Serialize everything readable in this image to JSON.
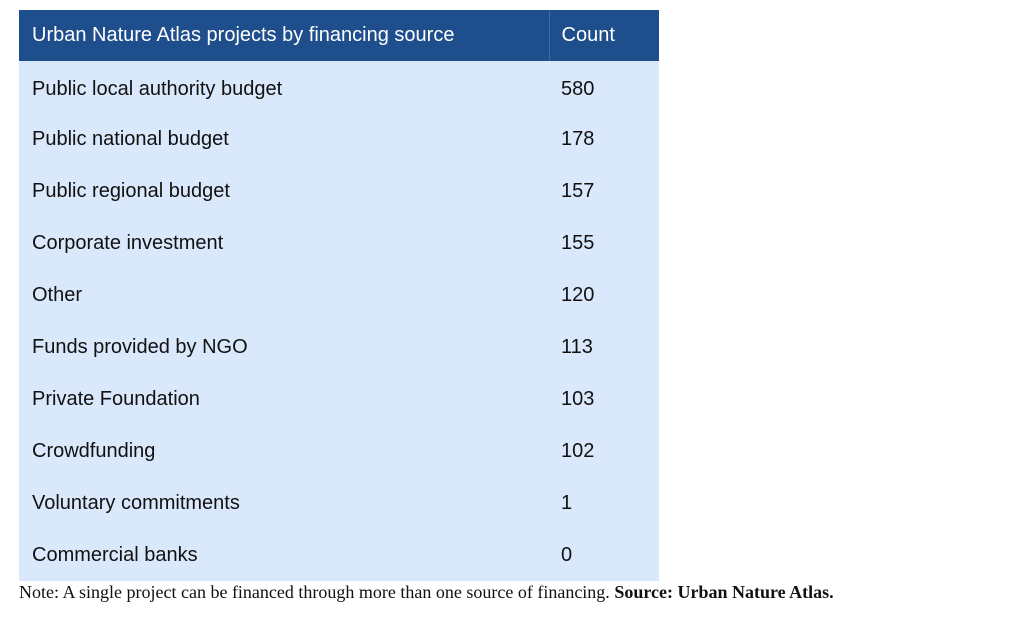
{
  "table": {
    "headers": [
      "Urban Nature Atlas projects by financing source",
      "Count"
    ],
    "rows": [
      {
        "source": "Public local authority budget",
        "count": "580"
      },
      {
        "source": "Public national budget",
        "count": "178"
      },
      {
        "source": "Public regional budget",
        "count": "157"
      },
      {
        "source": "Corporate investment",
        "count": "155"
      },
      {
        "source": "Other",
        "count": "120"
      },
      {
        "source": "Funds provided by NGO",
        "count": "113"
      },
      {
        "source": "Private Foundation",
        "count": "103"
      },
      {
        "source": "Crowdfunding",
        "count": "102"
      },
      {
        "source": "Voluntary commitments",
        "count": "1"
      },
      {
        "source": "Commercial banks",
        "count": "0"
      }
    ],
    "colors": {
      "header_bg": "#1f4e8c",
      "header_text": "#ffffff",
      "body_bg": "#dae8fc"
    }
  },
  "note": {
    "text": "Note: A single project can be financed through more than one source of financing.",
    "source": "Source: Urban Nature Atlas."
  }
}
